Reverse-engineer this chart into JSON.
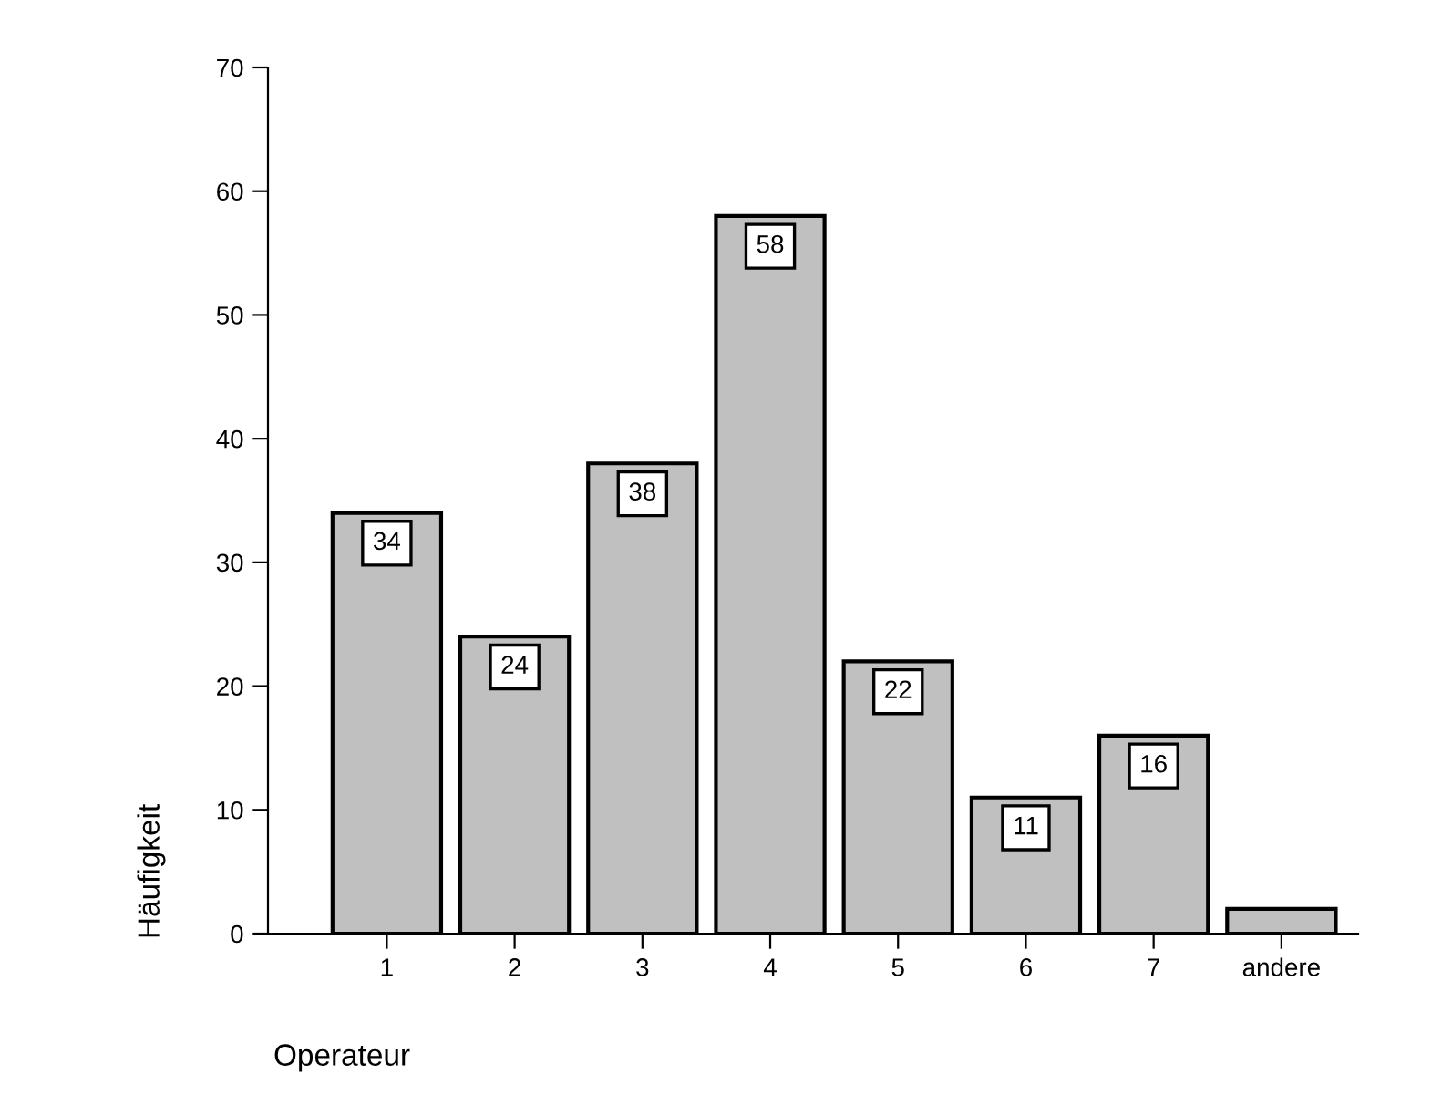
{
  "chart_data": {
    "type": "bar",
    "xlabel": "Operateur",
    "ylabel": "Häufigkeit",
    "categories": [
      "1",
      "2",
      "3",
      "4",
      "5",
      "6",
      "7",
      "andere"
    ],
    "values": [
      34,
      24,
      38,
      58,
      22,
      11,
      16,
      2
    ],
    "value_labels": [
      "34",
      "24",
      "38",
      "58",
      "22",
      "11",
      "16",
      null
    ],
    "color": "#c0c0c0",
    "ylim": [
      0,
      70
    ],
    "yticks": [
      0,
      10,
      20,
      30,
      40,
      50,
      60,
      70
    ],
    "grid": false,
    "legend": false
  }
}
